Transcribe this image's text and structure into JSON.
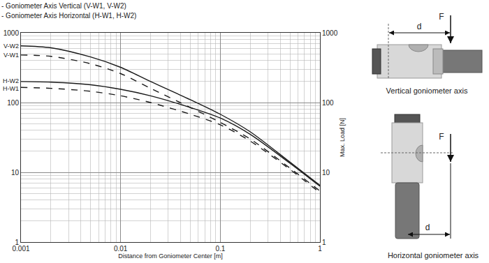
{
  "chart_data": {
    "type": "line",
    "annotations": [
      "- Goniometer Axis Vertical (V-W1, V-W2)",
      "- Goniometer Axis Horizontal (H-W1, H-W2)"
    ],
    "x_label": "Distance from Goniometer Center [m]",
    "y_label": "Max. Load [N]",
    "log": true,
    "grid": true,
    "xlim": [
      0.001,
      1
    ],
    "ylim": [
      1,
      1000
    ],
    "xticks": [
      0.001,
      0.01,
      0.1,
      1
    ],
    "yticks": [
      1,
      10,
      100,
      1000
    ],
    "x": [
      0.001,
      0.002,
      0.005,
      0.01,
      0.02,
      0.05,
      0.1,
      0.2,
      0.5,
      1
    ],
    "series": [
      {
        "name": "V-W2",
        "color": "#1a1a1a",
        "line_style": "solid",
        "values": [
          650,
          610,
          450,
          320,
          200,
          110,
          68,
          38,
          14,
          6.5
        ]
      },
      {
        "name": "V-W1",
        "color": "#1a1a1a",
        "line_style": "dashed",
        "values": [
          480,
          460,
          360,
          260,
          160,
          85,
          52,
          30,
          11.5,
          5.4
        ]
      },
      {
        "name": "H-W2",
        "color": "#1a1a1a",
        "line_style": "solid",
        "values": [
          200,
          196,
          180,
          155,
          125,
          85,
          60,
          35,
          13.5,
          6.3
        ]
      },
      {
        "name": "H-W1",
        "color": "#1a1a1a",
        "line_style": "dashed",
        "values": [
          165,
          160,
          145,
          125,
          100,
          68,
          48,
          28,
          11,
          5.1
        ]
      }
    ]
  },
  "figures": [
    {
      "caption": "Vertical goniometer axis",
      "distance": "d",
      "force": "F"
    },
    {
      "caption": "Horizontal goniometer axis",
      "distance": "d",
      "force": "F"
    }
  ]
}
